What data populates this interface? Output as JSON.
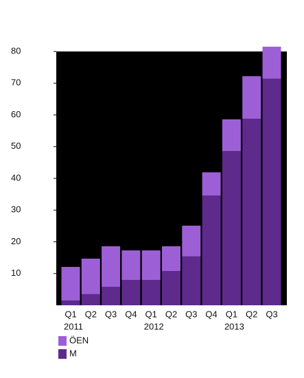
{
  "chart_data": {
    "type": "bar",
    "stacked": true,
    "categories": [
      "Q1",
      "Q2",
      "Q3",
      "Q4",
      "Q1",
      "Q2",
      "Q3",
      "Q4",
      "Q1",
      "Q2",
      "Q3"
    ],
    "years": [
      "2011",
      null,
      null,
      null,
      "2012",
      null,
      null,
      null,
      "2013",
      null,
      null
    ],
    "series": [
      {
        "name": "M",
        "color": "#5e2a8c",
        "values": [
          1.5,
          3.5,
          5.8,
          8.0,
          8.0,
          10.8,
          15.4,
          34.6,
          48.6,
          58.8,
          71.4
        ]
      },
      {
        "name": "ÖEN",
        "color": "#9d5fd6",
        "values": [
          10.6,
          11.2,
          12.8,
          9.3,
          9.3,
          7.8,
          9.7,
          7.3,
          10.0,
          13.4,
          10.1
        ]
      }
    ],
    "ylim": [
      0,
      80
    ],
    "yticks": [
      10,
      20,
      30,
      40,
      50,
      60,
      70,
      80
    ]
  }
}
